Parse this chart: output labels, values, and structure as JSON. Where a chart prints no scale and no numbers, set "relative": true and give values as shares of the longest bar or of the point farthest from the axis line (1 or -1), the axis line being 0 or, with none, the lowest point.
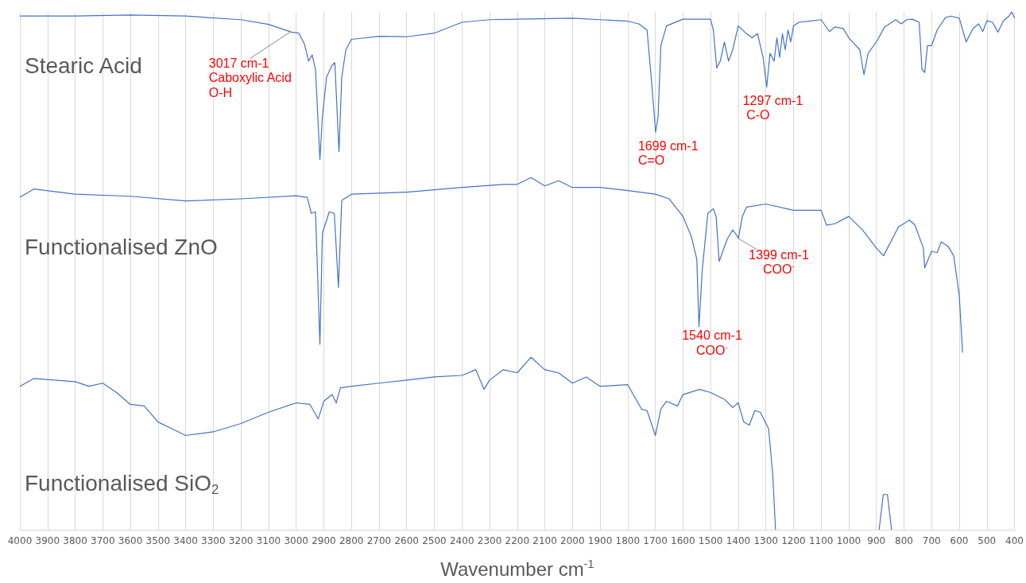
{
  "chart_data": {
    "type": "line",
    "relative": true,
    "xlabel": "Wavenumber cm$^{-1}$",
    "xlim": [
      4000,
      400
    ],
    "xticks": [
      4000,
      3900,
      3800,
      3700,
      3600,
      3500,
      3400,
      3300,
      3200,
      3100,
      3000,
      2900,
      2800,
      2700,
      2600,
      2500,
      2400,
      2300,
      2200,
      2100,
      2000,
      1900,
      1800,
      1700,
      1600,
      1500,
      1400,
      1300,
      1200,
      1100,
      1000,
      900,
      800,
      700,
      600,
      500,
      400
    ],
    "grid": "x",
    "marker": "none",
    "tick_labels": "x",
    "series": [
      {
        "name": "Stearic Acid",
        "color": "#4472c4",
        "x": [
          4000,
          3800,
          3600,
          3400,
          3200,
          3100,
          3017,
          2990,
          2970,
          2955,
          2942,
          2930,
          2914,
          2905,
          2890,
          2870,
          2860,
          2845,
          2835,
          2820,
          2800,
          2700,
          2600,
          2500,
          2400,
          2300,
          2200,
          2000,
          1800,
          1760,
          1730,
          1715,
          1699,
          1690,
          1680,
          1660,
          1600,
          1500,
          1490,
          1478,
          1465,
          1450,
          1435,
          1420,
          1400,
          1370,
          1350,
          1330,
          1310,
          1297,
          1285,
          1270,
          1260,
          1250,
          1240,
          1230,
          1220,
          1210,
          1200,
          1180,
          1100,
          1070,
          1050,
          1020,
          1000,
          960,
          945,
          930,
          900,
          870,
          830,
          810,
          790,
          770,
          745,
          735,
          725,
          715,
          700,
          680,
          650,
          630,
          600,
          575,
          550,
          530,
          515,
          500,
          480,
          460,
          440,
          420,
          410,
          400
        ],
        "values": [
          0.992,
          0.992,
          0.994,
          0.992,
          0.985,
          0.976,
          0.961,
          0.959,
          0.938,
          0.905,
          0.917,
          0.889,
          0.715,
          0.798,
          0.874,
          0.897,
          0.902,
          0.73,
          0.874,
          0.927,
          0.947,
          0.953,
          0.952,
          0.959,
          0.98,
          0.985,
          0.986,
          0.988,
          0.982,
          0.977,
          0.965,
          0.874,
          0.768,
          0.798,
          0.935,
          0.973,
          0.986,
          0.986,
          0.965,
          0.892,
          0.905,
          0.942,
          0.905,
          0.927,
          0.973,
          0.958,
          0.95,
          0.958,
          0.912,
          0.855,
          0.92,
          0.905,
          0.95,
          0.912,
          0.958,
          0.927,
          0.965,
          0.942,
          0.973,
          0.98,
          0.985,
          0.962,
          0.971,
          0.968,
          0.95,
          0.927,
          0.879,
          0.92,
          0.942,
          0.971,
          0.985,
          0.977,
          0.985,
          0.986,
          0.98,
          0.889,
          0.883,
          0.935,
          0.935,
          0.965,
          0.989,
          0.992,
          0.988,
          0.942,
          0.968,
          0.977,
          0.962,
          0.983,
          0.98,
          0.961,
          0.983,
          0.992,
          1,
          0.988
        ]
      },
      {
        "name": "Functionalised ZnO",
        "color": "#4472c4",
        "x": [
          4000,
          3950,
          3800,
          3600,
          3400,
          3200,
          3000,
          2960,
          2945,
          2930,
          2914,
          2905,
          2880,
          2862,
          2847,
          2835,
          2800,
          2600,
          2400,
          2250,
          2200,
          2150,
          2100,
          2050,
          2000,
          1900,
          1800,
          1700,
          1650,
          1600,
          1570,
          1550,
          1542,
          1530,
          1510,
          1490,
          1480,
          1469,
          1440,
          1420,
          1399,
          1385,
          1370,
          1300,
          1200,
          1100,
          1080,
          1050,
          1000,
          950,
          900,
          874,
          820,
          780,
          760,
          730,
          725,
          700,
          680,
          665,
          640,
          620,
          600,
          588
        ],
        "values": [
          0.642,
          0.658,
          0.648,
          0.644,
          0.635,
          0.639,
          0.645,
          0.642,
          0.611,
          0.614,
          0.358,
          0.573,
          0.614,
          0.611,
          0.468,
          0.636,
          0.648,
          0.652,
          0.661,
          0.667,
          0.667,
          0.68,
          0.664,
          0.674,
          0.661,
          0.661,
          0.655,
          0.648,
          0.639,
          0.605,
          0.567,
          0.523,
          0.392,
          0.503,
          0.611,
          0.62,
          0.605,
          0.518,
          0.561,
          0.579,
          0.564,
          0.605,
          0.623,
          0.629,
          0.617,
          0.617,
          0.588,
          0.591,
          0.605,
          0.579,
          0.544,
          0.529,
          0.585,
          0.598,
          0.588,
          0.544,
          0.506,
          0.538,
          0.535,
          0.556,
          0.547,
          0.529,
          0.453,
          0.342
        ]
      },
      {
        "name": "Functionalised SiO$_{2}$",
        "color": "#4472c4",
        "x": [
          4000,
          3950,
          3800,
          3750,
          3700,
          3650,
          3600,
          3550,
          3500,
          3450,
          3400,
          3300,
          3200,
          3100,
          3000,
          2950,
          2920,
          2900,
          2870,
          2855,
          2840,
          2800,
          2700,
          2600,
          2500,
          2400,
          2350,
          2320,
          2300,
          2250,
          2200,
          2150,
          2100,
          2050,
          2000,
          1950,
          1900,
          1800,
          1750,
          1730,
          1700,
          1680,
          1660,
          1620,
          1600,
          1540,
          1500,
          1450,
          1420,
          1400,
          1380,
          1360,
          1340,
          1320,
          1290,
          1275,
          1265,
          1000,
          890,
          875,
          860,
          845
        ],
        "values": [
          0.277,
          0.292,
          0.286,
          0.277,
          0.283,
          0.265,
          0.242,
          0.239,
          0.208,
          0.195,
          0.182,
          0.189,
          0.205,
          0.227,
          0.245,
          0.242,
          0.214,
          0.248,
          0.261,
          0.245,
          0.274,
          0.277,
          0.283,
          0.289,
          0.295,
          0.298,
          0.309,
          0.271,
          0.289,
          0.309,
          0.303,
          0.333,
          0.309,
          0.303,
          0.283,
          0.295,
          0.277,
          0.28,
          0.233,
          0.23,
          0.182,
          0.233,
          0.248,
          0.239,
          0.261,
          0.271,
          0.265,
          0.252,
          0.236,
          0.245,
          0.208,
          0.202,
          0.23,
          0.227,
          0.195,
          0.106,
          0,
          null,
          0,
          0.068,
          0.068,
          0
        ]
      }
    ],
    "annotations": [
      {
        "text": "3017 cm-1\nCaboxylic Acid\nO-H",
        "x": 3017,
        "y": 0.961
      },
      {
        "text": "1699 cm-1\nC=O",
        "x": 1699,
        "y": 0.768
      },
      {
        "text": "1297 cm-1\n C-O",
        "x": 1297,
        "y": 0.855
      },
      {
        "text": "1540 cm-1\n    COO$^{-}$",
        "x": 1540,
        "y": 0.392
      },
      {
        "text": "1399 cm-1\n    COO$^{-}$",
        "x": 1399,
        "y": 0.564
      }
    ]
  }
}
